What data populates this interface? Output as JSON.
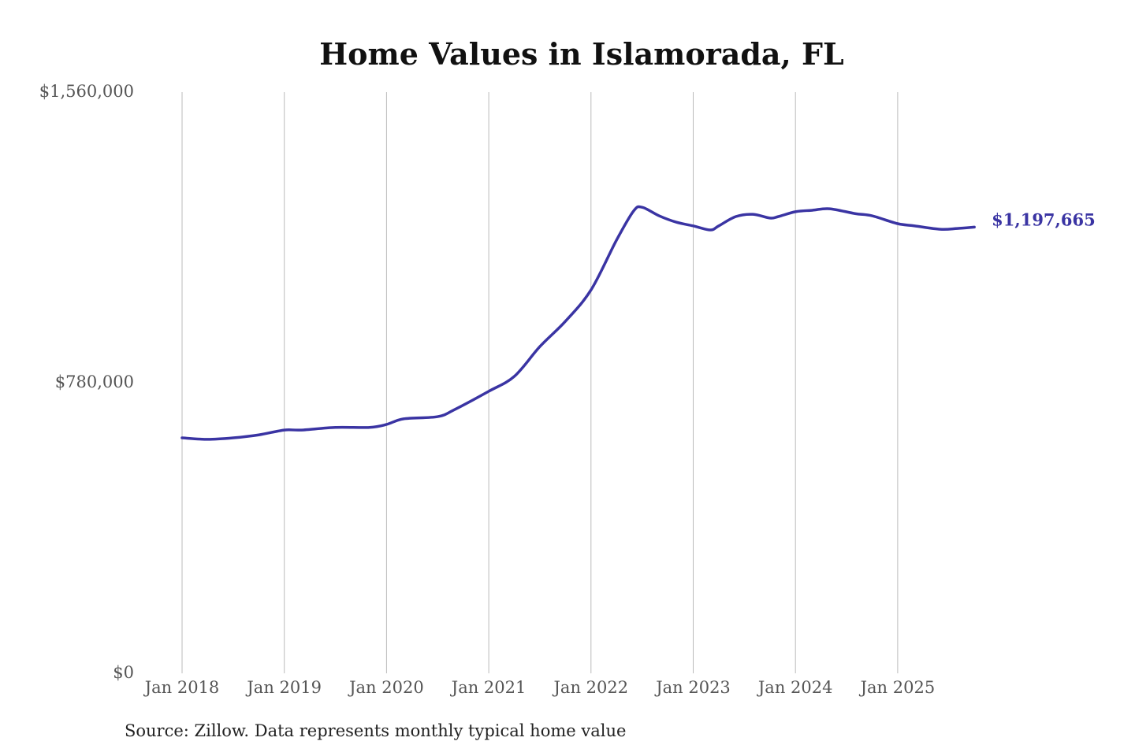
{
  "chart_data": {
    "type": "line",
    "title": "Home Values in Islamorada, FL",
    "xlabel": "",
    "ylabel": "",
    "ylim": [
      0,
      1560000
    ],
    "y_ticks": [
      0,
      780000,
      1560000
    ],
    "y_tick_labels": [
      "$0",
      "$780,000",
      "$1,560,000"
    ],
    "x_tick_labels": [
      "Jan 2018",
      "Jan 2019",
      "Jan 2020",
      "Jan 2021",
      "Jan 2022",
      "Jan 2023",
      "Jan 2024",
      "Jan 2025"
    ],
    "grid": "vertical",
    "line_color": "#3a34a3",
    "end_label": "$1,197,665",
    "series": [
      {
        "x": [
          "2018-01",
          "2018-04",
          "2018-07",
          "2018-10",
          "2019-01",
          "2019-03",
          "2019-07",
          "2019-11",
          "2020-01",
          "2020-03",
          "2020-07",
          "2020-09",
          "2021-01",
          "2021-04",
          "2021-07",
          "2021-10",
          "2022-01",
          "2022-04",
          "2022-06",
          "2022-07",
          "2022-09",
          "2022-11",
          "2023-01",
          "2023-03",
          "2023-04",
          "2023-06",
          "2023-08",
          "2023-10",
          "2023-11",
          "2024-01",
          "2024-03",
          "2024-05",
          "2024-08",
          "2024-10",
          "2025-01",
          "2025-03",
          "2025-06",
          "2025-08",
          "2025-10"
        ],
        "values": [
          632000,
          628000,
          632000,
          640000,
          653000,
          653000,
          660000,
          660000,
          668000,
          683000,
          689000,
          708000,
          757000,
          797000,
          877000,
          945000,
          1029000,
          1163000,
          1241000,
          1251000,
          1228000,
          1211000,
          1201000,
          1190000,
          1201000,
          1226000,
          1232000,
          1222000,
          1226000,
          1239000,
          1243000,
          1247000,
          1234000,
          1228000,
          1207000,
          1201000,
          1192000,
          1194000,
          1197665
        ]
      }
    ]
  },
  "source": "Source: Zillow. Data represents monthly typical home value"
}
